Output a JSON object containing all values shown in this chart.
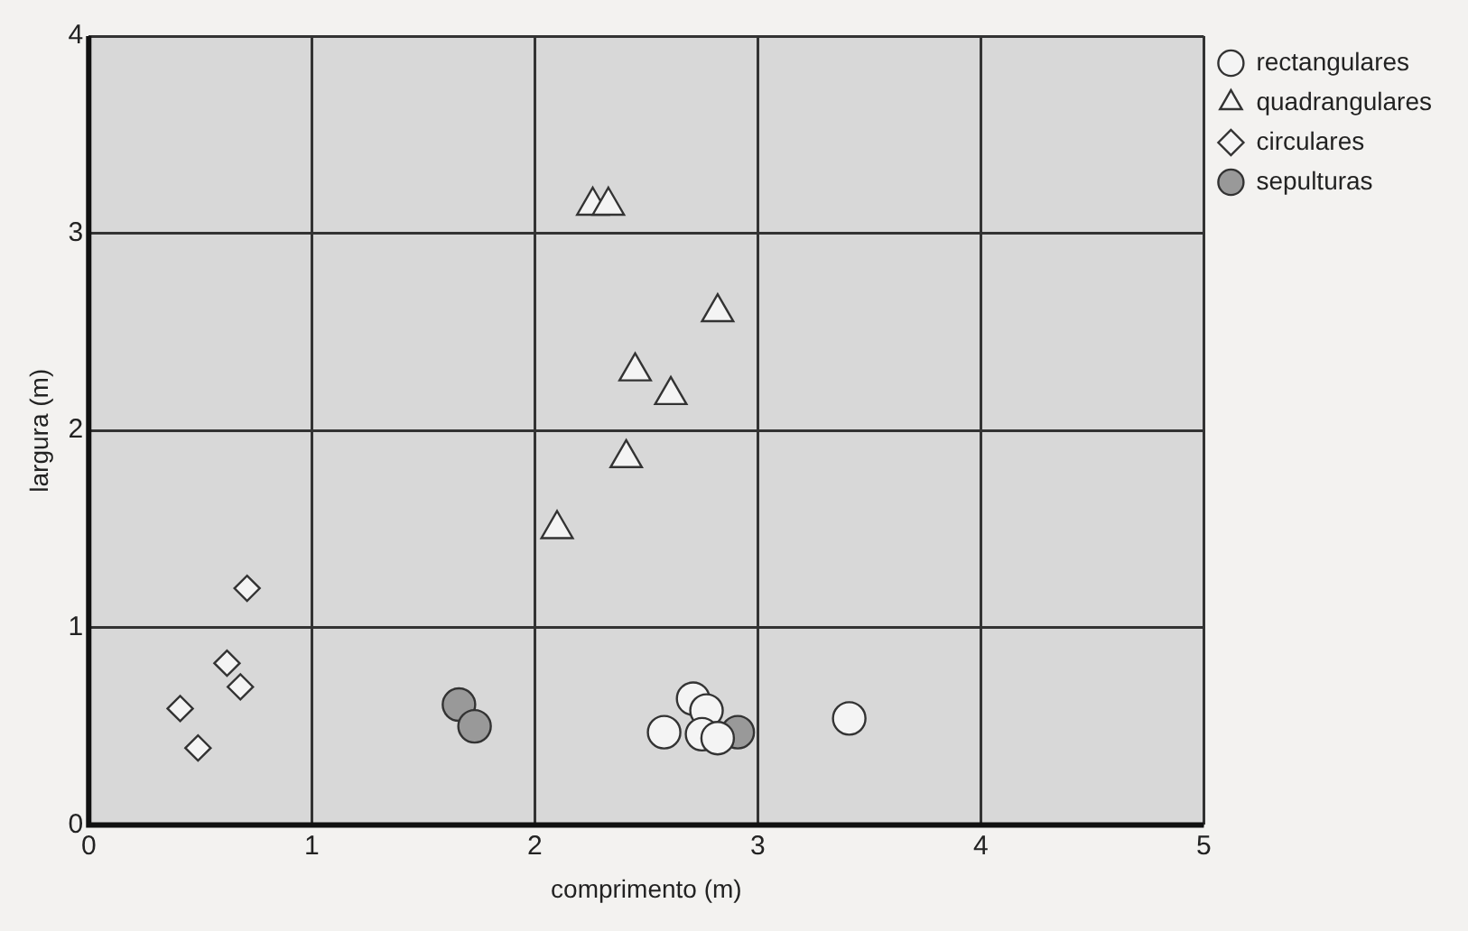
{
  "chart_data": {
    "type": "scatter",
    "xlabel": "comprimento (m)",
    "ylabel": "largura (m)",
    "xlim": [
      0,
      5
    ],
    "ylim": [
      0,
      4
    ],
    "xticks": [
      0,
      1,
      2,
      3,
      4,
      5
    ],
    "yticks": [
      0,
      1,
      2,
      3,
      4
    ],
    "grid": true,
    "legend": "top right",
    "series": [
      {
        "name": "rectangulares",
        "color": "#f4f4f4",
        "marker": "circle",
        "x": [
          2.71,
          2.77,
          2.58,
          2.75,
          2.82,
          3.41
        ],
        "values": [
          0.64,
          0.58,
          0.47,
          0.46,
          0.44,
          0.54
        ]
      },
      {
        "name": "quadrangulares",
        "color": "#f4f4f4",
        "marker": "triangle",
        "x": [
          2.26,
          2.33,
          2.82,
          2.45,
          2.61,
          2.41,
          2.1
        ],
        "values": [
          3.14,
          3.14,
          2.6,
          2.3,
          2.18,
          1.86,
          1.5
        ]
      },
      {
        "name": "circulares",
        "color": "#f4f4f4",
        "marker": "diamond",
        "x": [
          0.71,
          0.62,
          0.68,
          0.41,
          0.49
        ],
        "values": [
          1.2,
          0.82,
          0.7,
          0.59,
          0.39
        ]
      },
      {
        "name": "sepulturas",
        "color": "#999999",
        "marker": "circle",
        "x": [
          1.66,
          1.73,
          2.91
        ],
        "values": [
          0.61,
          0.5,
          0.47
        ]
      }
    ]
  }
}
